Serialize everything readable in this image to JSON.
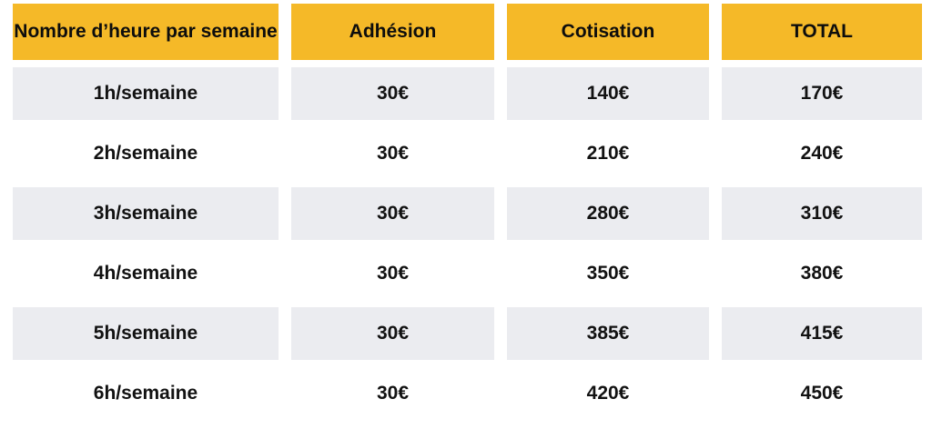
{
  "table": {
    "columns": [
      {
        "label": "Nombre d’heure par semaine"
      },
      {
        "label": "Adhésion"
      },
      {
        "label": "Cotisation"
      },
      {
        "label": "TOTAL"
      }
    ],
    "rows": [
      {
        "hours": "1h/semaine",
        "adhesion": "30€",
        "cotisation": "140€",
        "total": "170€"
      },
      {
        "hours": "2h/semaine",
        "adhesion": "30€",
        "cotisation": "210€",
        "total": "240€"
      },
      {
        "hours": "3h/semaine",
        "adhesion": "30€",
        "cotisation": "280€",
        "total": "310€"
      },
      {
        "hours": "4h/semaine",
        "adhesion": "30€",
        "cotisation": "350€",
        "total": "380€"
      },
      {
        "hours": "5h/semaine",
        "adhesion": "30€",
        "cotisation": "385€",
        "total": "415€"
      },
      {
        "hours": "6h/semaine",
        "adhesion": "30€",
        "cotisation": "420€",
        "total": "450€"
      }
    ]
  },
  "colors": {
    "header_bg": "#F5B928",
    "stripe_bg": "#EBECF0",
    "text": "#121212",
    "page_bg": "#FFFFFF"
  }
}
